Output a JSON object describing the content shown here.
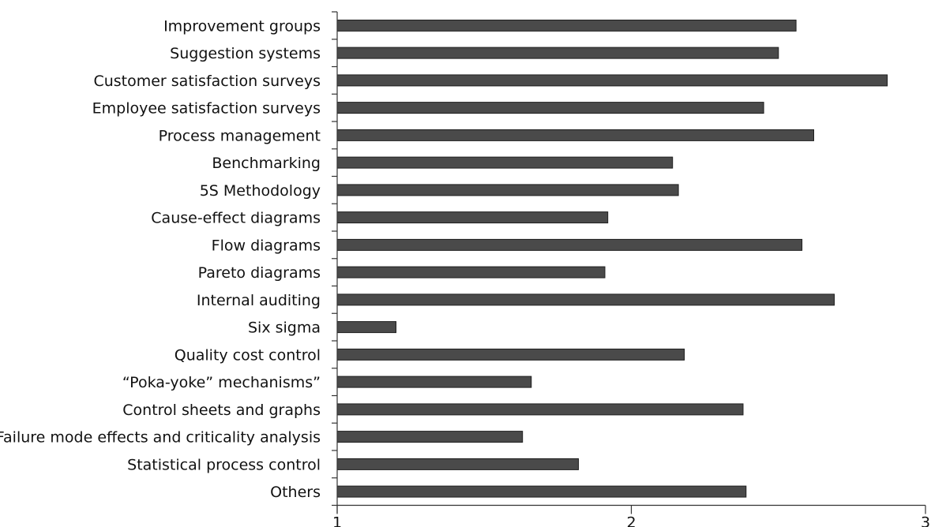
{
  "chart_data": {
    "type": "bar",
    "orientation": "horizontal",
    "categories": [
      "Improvement groups",
      "Suggestion systems",
      "Customer satisfaction surveys",
      "Employee satisfaction surveys",
      "Process management",
      "Benchmarking",
      "5S Methodology",
      "Cause-effect diagrams",
      "Flow diagrams",
      "Pareto diagrams",
      "Internal auditing",
      "Six sigma",
      "Quality cost control",
      "“Poka-yoke” mechanisms”",
      "Control sheets and graphs",
      "Failure mode effects and criticality analysis",
      "Statistical process control",
      "Others"
    ],
    "values": [
      2.56,
      2.5,
      2.87,
      2.45,
      2.62,
      2.14,
      2.16,
      1.92,
      2.58,
      1.91,
      2.69,
      1.2,
      2.18,
      1.66,
      2.38,
      1.63,
      1.82,
      2.39
    ],
    "xlim": [
      1,
      3
    ],
    "xticks": [
      "1",
      "2",
      "3"
    ],
    "bar_color": "#4a4a4a",
    "grid": false
  }
}
